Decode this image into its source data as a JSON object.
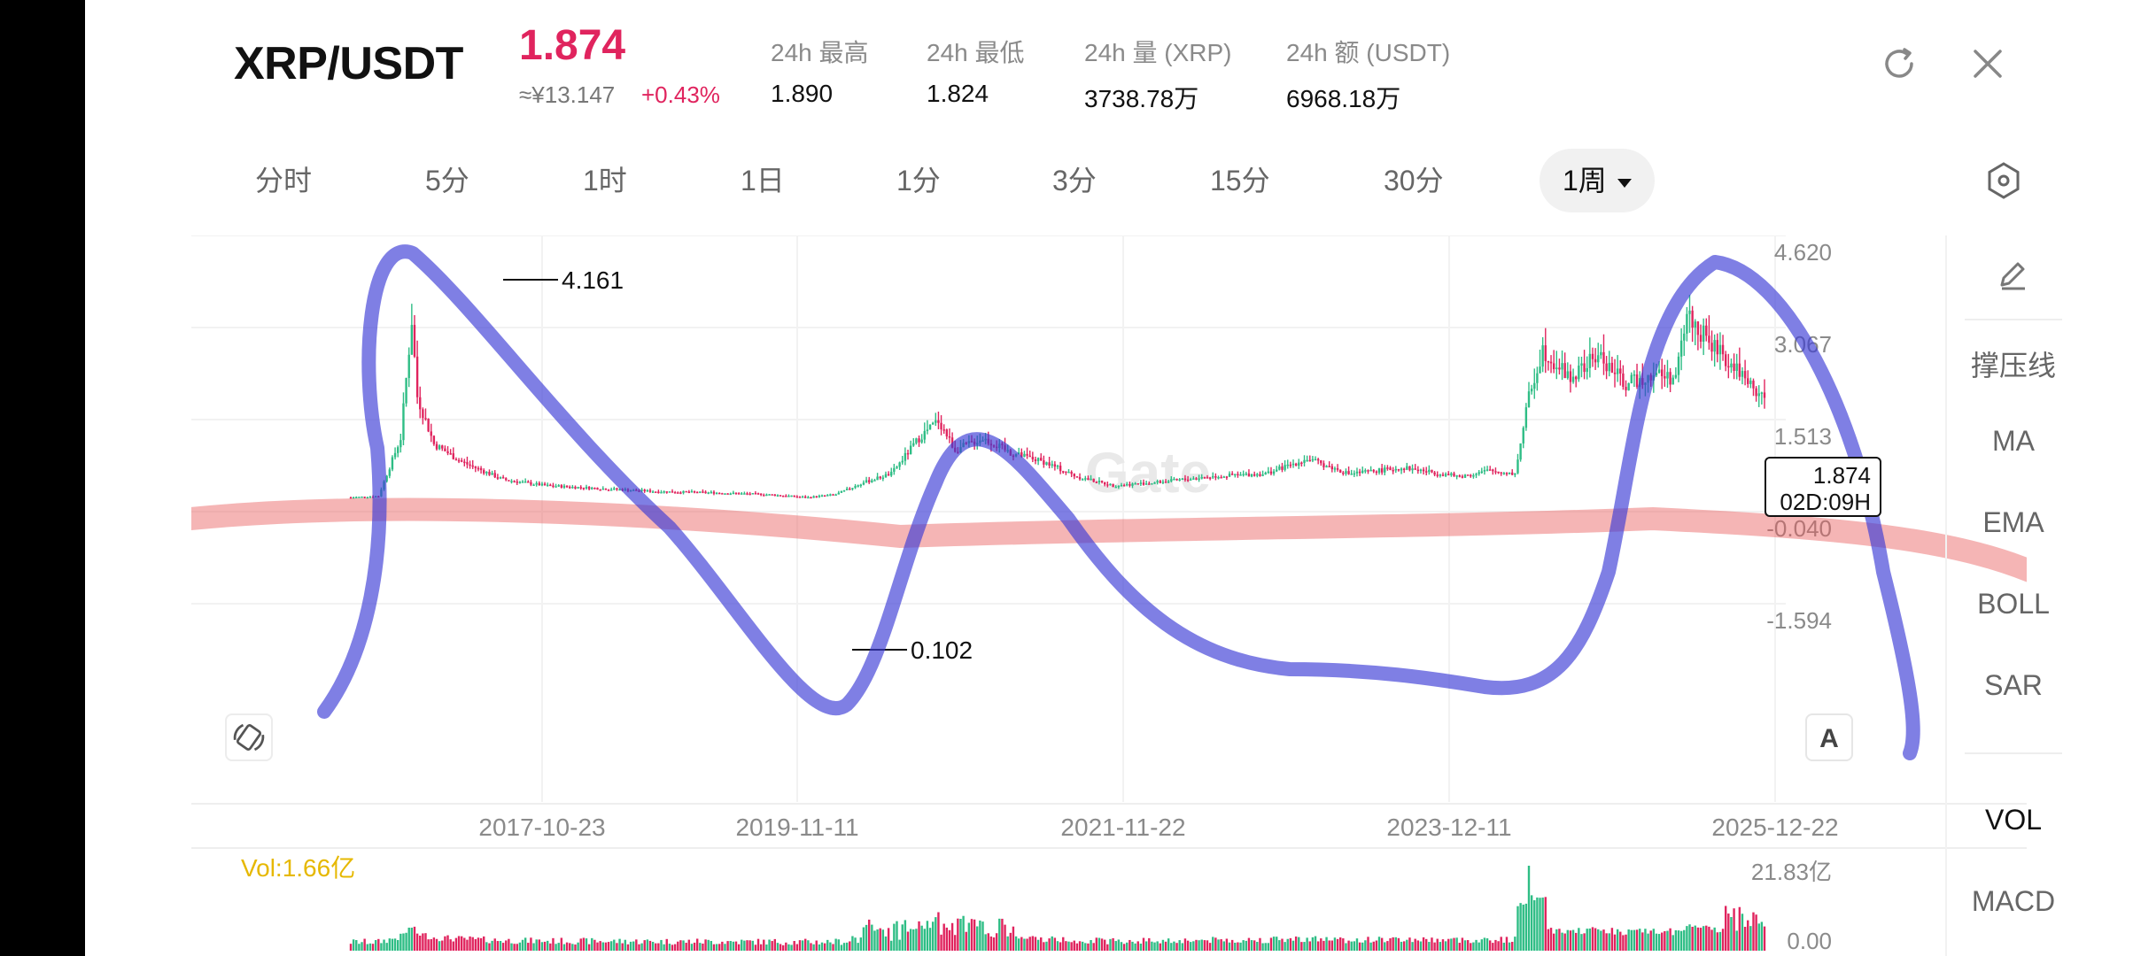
{
  "header": {
    "pair": "XRP/USDT",
    "price": "1.874",
    "cny_price": "≈¥13.147",
    "change": "+0.43%",
    "stats": [
      {
        "label": "24h  最高",
        "value": "1.890"
      },
      {
        "label": "24h  最低",
        "value": "1.824"
      },
      {
        "label": "24h  量 (XRP)",
        "value": "3738.78万"
      },
      {
        "label": "24h  额 (USDT)",
        "value": "6968.18万"
      }
    ]
  },
  "icons": {
    "refresh": "refresh-icon",
    "close": "close-icon",
    "settings": "hexagon-settings-icon",
    "pencil": "pencil-icon",
    "rotate": "rotate-screen-icon"
  },
  "tabs": [
    {
      "label": "分时"
    },
    {
      "label": "5分"
    },
    {
      "label": "1时"
    },
    {
      "label": "1日"
    },
    {
      "label": "1分"
    },
    {
      "label": "3分"
    },
    {
      "label": "15分"
    },
    {
      "label": "30分"
    },
    {
      "label": "1周",
      "active": true
    }
  ],
  "sidebar": {
    "items": [
      "撑压线",
      "MA",
      "EMA",
      "BOLL",
      "SAR"
    ],
    "sub_items": [
      "VOL",
      "MACD"
    ]
  },
  "chart_data": {
    "type": "candlestick",
    "watermark": "Gate",
    "y_ticks": [
      "4.620",
      "3.067",
      "1.513",
      "-0.040",
      "-1.594"
    ],
    "x_ticks": [
      "2017-10-23",
      "2019-11-11",
      "2021-11-22",
      "2023-12-11",
      "2025-12-22"
    ],
    "high_label": "4.161",
    "low_label": "0.102",
    "last_price": "1.874",
    "countdown": "02D:09H",
    "volume": {
      "label": "Vol:1.66亿",
      "y_ticks": [
        "21.83亿",
        "0.00"
      ]
    },
    "colors": {
      "up": "#2ebd85",
      "down": "#e0245e",
      "blue_marker": "#3b3bd6",
      "red_marker": "#e85a5a",
      "vol_label": "#e6b800"
    }
  },
  "annotations": [
    "blue-hand-drawn-wave",
    "red-hand-drawn-line"
  ],
  "buttons": {
    "auto": "A"
  }
}
